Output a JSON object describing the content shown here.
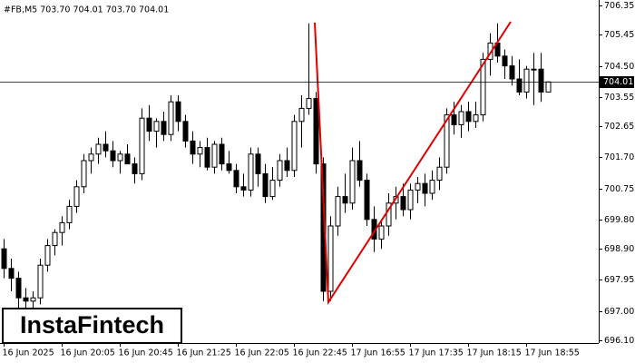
{
  "chart_data": {
    "type": "candlestick",
    "title": "#FB,M5 703.70 704.01 703.70 704.01",
    "watermark": "InstaFintech",
    "current_price": 704.01,
    "bull_color": "#ffffff",
    "bear_color": "#000000",
    "pattern_color": "#e00000",
    "ylim": [
      696.1,
      706.35
    ],
    "yticks": [
      706.35,
      705.45,
      {
        "value": 704.5,
        "label": "704.50"
      },
      703.55,
      702.65,
      {
        "value": 701.7,
        "label": "701.70"
      },
      700.75,
      {
        "value": 699.8,
        "label": "699.80"
      },
      {
        "value": 698.9,
        "label": "698.90"
      },
      697.95,
      {
        "value": 697,
        "label": "697.00"
      },
      {
        "value": 696.1,
        "label": "696.10"
      }
    ],
    "categories": [
      "16 Jun 2025",
      null,
      null,
      null,
      null,
      null,
      null,
      null,
      "16 Jun 20:05",
      null,
      null,
      null,
      null,
      null,
      null,
      null,
      "16 Jun 20:45",
      null,
      null,
      null,
      null,
      null,
      null,
      null,
      "16 Jun 21:25",
      null,
      null,
      null,
      null,
      null,
      null,
      null,
      "16 Jun 22:05",
      null,
      null,
      null,
      null,
      null,
      null,
      null,
      "16 Jun 22:45",
      null,
      null,
      null,
      null,
      null,
      null,
      null,
      "17 Jun 16:55",
      null,
      null,
      null,
      null,
      null,
      null,
      null,
      "17 Jun 17:35",
      null,
      null,
      null,
      null,
      null,
      null,
      null,
      "17 Jun 18:15",
      null,
      null,
      null,
      null,
      null,
      null,
      null,
      "17 Jun 18:55",
      null,
      null,
      null
    ],
    "open": [
      698.9,
      698.3,
      698.0,
      697.4,
      697.3,
      697.4,
      698.4,
      699.0,
      699.4,
      699.7,
      700.2,
      700.8,
      701.6,
      701.8,
      702.1,
      701.9,
      701.6,
      701.8,
      701.5,
      701.2,
      702.9,
      702.5,
      702.8,
      702.4,
      703.4,
      702.8,
      702.2,
      701.8,
      702.0,
      701.4,
      702.1,
      701.5,
      701.3,
      700.8,
      700.7,
      701.8,
      701.2,
      700.5,
      701.0,
      701.6,
      701.3,
      702.8,
      703.2,
      703.5,
      701.5,
      697.6,
      699.6,
      700.5,
      700.3,
      701.6,
      701.0,
      699.8,
      699.2,
      699.6,
      700.3,
      700.5,
      700.1,
      700.7,
      700.9,
      700.6,
      701.0,
      701.4,
      703.0,
      702.7,
      703.1,
      702.8,
      703.0,
      704.7,
      705.2,
      704.8,
      704.5,
      704.1,
      703.7,
      704.4,
      704.4,
      703.7
    ],
    "high": [
      699.2,
      698.6,
      698.2,
      697.7,
      697.6,
      698.6,
      699.2,
      699.5,
      699.9,
      700.4,
      701.0,
      701.8,
      702.0,
      702.3,
      702.5,
      702.2,
      701.9,
      702.1,
      701.7,
      703.2,
      703.3,
      702.9,
      703.1,
      703.6,
      703.6,
      703.0,
      702.5,
      702.2,
      702.3,
      702.2,
      702.3,
      701.9,
      701.5,
      701.2,
      702.0,
      702.0,
      701.5,
      701.4,
      701.8,
      702.0,
      703.0,
      703.6,
      705.8,
      703.7,
      701.7,
      699.9,
      700.8,
      701.2,
      702.0,
      702.2,
      701.2,
      700.2,
      699.8,
      700.6,
      700.8,
      700.9,
      700.9,
      701.1,
      701.2,
      701.3,
      701.7,
      703.2,
      703.4,
      703.3,
      703.4,
      703.4,
      704.9,
      705.5,
      705.8,
      705.0,
      704.8,
      704.7,
      704.5,
      704.9,
      704.9,
      704.01
    ],
    "low": [
      698.0,
      697.6,
      697.1,
      696.9,
      696.9,
      697.2,
      698.2,
      698.7,
      699.0,
      699.5,
      700.0,
      700.6,
      701.2,
      701.5,
      701.7,
      701.4,
      701.2,
      701.5,
      700.9,
      701.0,
      702.2,
      702.0,
      702.2,
      702.2,
      702.5,
      702.0,
      701.5,
      701.4,
      701.3,
      701.2,
      701.3,
      701.2,
      700.6,
      700.5,
      700.5,
      700.8,
      700.3,
      700.4,
      700.8,
      701.1,
      701.1,
      702.0,
      703.0,
      701.2,
      697.3,
      697.3,
      699.3,
      700.0,
      700.1,
      700.8,
      699.6,
      698.8,
      698.9,
      699.3,
      699.8,
      699.9,
      699.8,
      700.3,
      700.2,
      700.4,
      700.7,
      701.2,
      702.4,
      702.3,
      702.5,
      702.6,
      702.8,
      704.2,
      704.6,
      704.1,
      703.9,
      703.6,
      703.5,
      703.3,
      703.4,
      703.7
    ],
    "close": [
      698.3,
      698.0,
      697.4,
      697.3,
      697.4,
      698.4,
      699.0,
      699.4,
      699.7,
      700.2,
      700.8,
      701.6,
      701.8,
      702.1,
      701.9,
      701.6,
      701.8,
      701.5,
      701.2,
      702.9,
      702.5,
      702.8,
      702.4,
      703.4,
      702.8,
      702.2,
      701.8,
      702.0,
      701.4,
      702.1,
      701.5,
      701.3,
      700.8,
      700.7,
      701.8,
      701.2,
      700.5,
      701.0,
      701.6,
      701.3,
      702.8,
      703.2,
      703.5,
      701.5,
      697.6,
      699.6,
      700.5,
      700.3,
      701.6,
      701.0,
      699.8,
      699.2,
      699.6,
      700.3,
      700.5,
      700.1,
      700.7,
      700.9,
      700.6,
      701.0,
      701.4,
      703.0,
      702.7,
      703.1,
      702.8,
      703.0,
      704.7,
      705.2,
      704.8,
      704.5,
      704.1,
      703.7,
      704.4,
      704.4,
      703.7,
      704.01
    ]
  }
}
